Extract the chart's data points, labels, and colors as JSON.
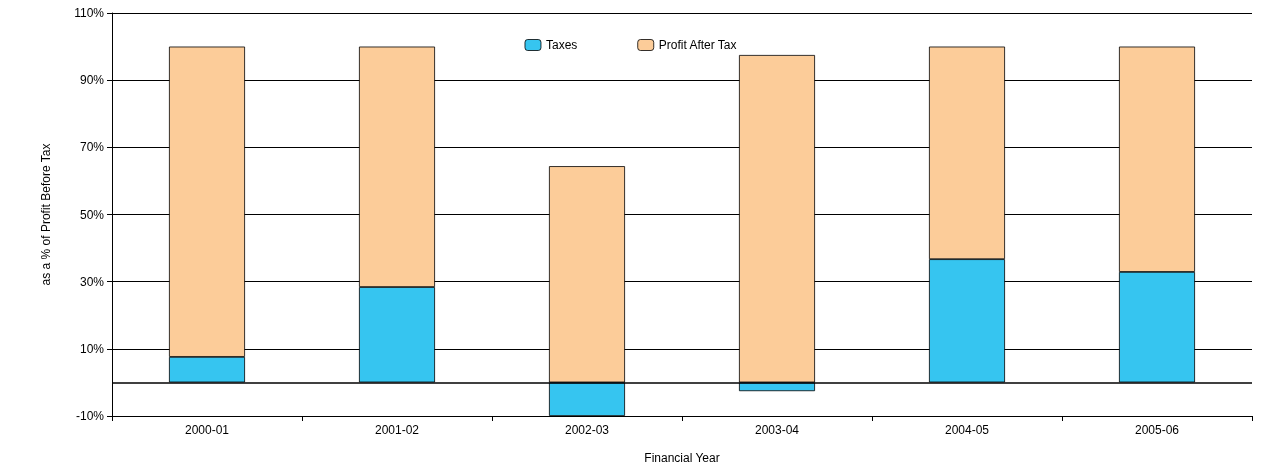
{
  "chart_data": {
    "type": "bar",
    "stacked": true,
    "xlabel": "Financial Year",
    "ylabel": "as a % of Profit Before Tax",
    "categories": [
      "2000-01",
      "2001-02",
      "2002-03",
      "2003-04",
      "2004-05",
      "2005-06"
    ],
    "series": [
      {
        "name": "Taxes",
        "color": "#36c5f0",
        "values": [
          7.6,
          28.4,
          -10,
          -2.6,
          36.7,
          32.9
        ]
      },
      {
        "name": "Profit After Tax",
        "color": "#fccc99",
        "values": [
          92.4,
          71.6,
          64.4,
          97.5,
          63.3,
          67.1
        ]
      }
    ],
    "ylim": [
      -10,
      110
    ],
    "yticks": [
      {
        "value": -10,
        "label": "-10%"
      },
      {
        "value": 10,
        "label": "10%"
      },
      {
        "value": 30,
        "label": "30%"
      },
      {
        "value": 50,
        "label": "50%"
      },
      {
        "value": 70,
        "label": "70%"
      },
      {
        "value": 90,
        "label": "90%"
      },
      {
        "value": 110,
        "label": "110%"
      }
    ],
    "ref_lines": [
      {
        "axis": "y",
        "value": 0,
        "label": null,
        "color": "#000000"
      }
    ],
    "grid": "y",
    "legend": "top"
  }
}
